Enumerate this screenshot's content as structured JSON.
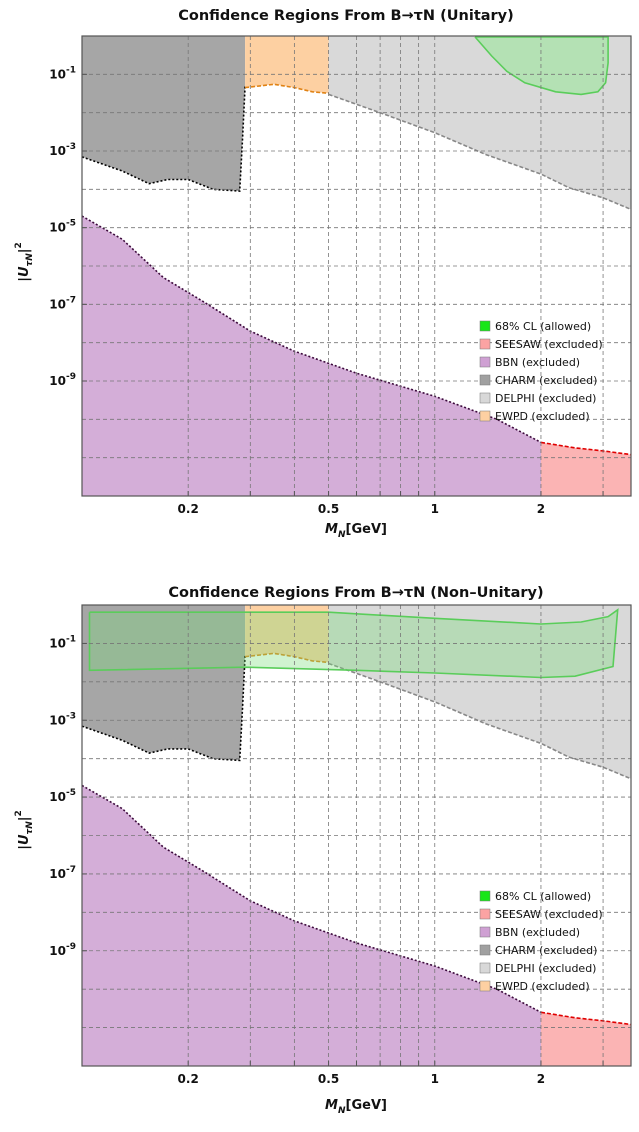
{
  "chart_data": [
    {
      "type": "area",
      "title": "Confidence Regions From B→τN (Unitary)",
      "xlabel_main": "M",
      "xlabel_sub": "N",
      "xlabel_unit": "[GeV]",
      "ylabel_main": "|U",
      "ylabel_sub": "τN",
      "ylabel_tail": "|",
      "ylabel_sup": "2",
      "x_scale": "log",
      "y_scale": "log",
      "xlim": [
        0.1,
        3.6
      ],
      "ylim": [
        1e-12,
        1
      ],
      "grid": true,
      "legend_position": "lower-right",
      "x_tick_labels": [
        {
          "value": 0.2,
          "label": "0.2"
        },
        {
          "value": 0.5,
          "label": "0.5"
        },
        {
          "value": 1,
          "label": "1"
        },
        {
          "value": 2,
          "label": "2"
        }
      ],
      "y_tick_labels": [
        {
          "value": 0.1,
          "label": "10",
          "exp": "-1"
        },
        {
          "value": 0.001,
          "label": "10",
          "exp": "-3"
        },
        {
          "value": 1e-05,
          "label": "10",
          "exp": "-5"
        },
        {
          "value": 1e-07,
          "label": "10",
          "exp": "-7"
        },
        {
          "value": 1e-09,
          "label": "10",
          "exp": "-9"
        }
      ],
      "series": [
        {
          "name": "DELPHI (excluded)",
          "fill": "#d9d9d9",
          "edge": "#888888",
          "edge_style": "dashed",
          "boundary": [
            [
              0.5,
              0.03
            ],
            [
              0.7,
              0.01
            ],
            [
              1.0,
              0.003
            ],
            [
              1.4,
              0.0008
            ],
            [
              2.0,
              0.00025
            ],
            [
              2.4,
              0.00011
            ],
            [
              3.0,
              6e-05
            ],
            [
              3.6,
              3e-05
            ]
          ]
        },
        {
          "name": "CHARM (excluded)",
          "fill": "#a6a6a6",
          "edge": "#000000",
          "edge_style": "dotted",
          "boundary": [
            [
              0.1,
              0.0007
            ],
            [
              0.13,
              0.0003
            ],
            [
              0.155,
              0.00014
            ],
            [
              0.175,
              0.00018
            ],
            [
              0.2,
              0.00018
            ],
            [
              0.235,
              0.0001
            ],
            [
              0.28,
              9e-05
            ],
            [
              0.285,
              0.002
            ],
            [
              0.29,
              0.05
            ]
          ]
        },
        {
          "name": "EWPD (excluded)",
          "fill": "#fdd0a2",
          "edge": "#e08214",
          "edge_style": "dashed",
          "boundary": [
            [
              0.29,
              0.045
            ],
            [
              0.35,
              0.055
            ],
            [
              0.4,
              0.045
            ],
            [
              0.45,
              0.035
            ],
            [
              0.5,
              0.032
            ]
          ]
        },
        {
          "name": "BBN (excluded)",
          "fill": "#d4aed8",
          "edge": "#3c0a3c",
          "edge_style": "dotted",
          "boundary": [
            [
              0.1,
              2e-05
            ],
            [
              0.13,
              5e-06
            ],
            [
              0.17,
              5e-07
            ],
            [
              0.22,
              1.2e-07
            ],
            [
              0.3,
              2e-08
            ],
            [
              0.4,
              6e-09
            ],
            [
              0.6,
              1.6e-09
            ],
            [
              1.0,
              4e-10
            ],
            [
              1.5,
              1e-10
            ],
            [
              2.0,
              2.5e-11
            ]
          ]
        },
        {
          "name": "SEESAW (excluded)",
          "fill": "#fbb4b4",
          "edge": "#e00000",
          "edge_style": "dashed",
          "boundary": [
            [
              2.0,
              2.5e-11
            ],
            [
              2.5,
              1.8e-11
            ],
            [
              3.0,
              1.5e-11
            ],
            [
              3.6,
              1.2e-11
            ]
          ]
        },
        {
          "name": "68% CL (allowed)",
          "fill": "#b4e1b4",
          "edge": "#5acd5a",
          "edge_style": "solid",
          "boundary": [
            [
              1.3,
              0.95
            ],
            [
              1.45,
              0.3
            ],
            [
              1.6,
              0.12
            ],
            [
              1.8,
              0.06
            ],
            [
              2.2,
              0.035
            ],
            [
              2.6,
              0.03
            ],
            [
              2.9,
              0.035
            ],
            [
              3.05,
              0.06
            ],
            [
              3.1,
              0.2
            ],
            [
              3.1,
              0.95
            ]
          ]
        }
      ],
      "legend": [
        {
          "label": "68% CL (allowed)",
          "color": "#19e619"
        },
        {
          "label": "SEESAW (excluded)",
          "color": "#fba3a3"
        },
        {
          "label": "BBN (excluded)",
          "color": "#cfa0d3"
        },
        {
          "label": "CHARM (excluded)",
          "color": "#a0a0a0"
        },
        {
          "label": "DELPHI (excluded)",
          "color": "#d8d8d8"
        },
        {
          "label": "EWPD (excluded)",
          "color": "#fdd0a2"
        }
      ]
    },
    {
      "type": "area",
      "title": "Confidence Regions From B→τN (Non–Unitary)",
      "xlabel_main": "M",
      "xlabel_sub": "N",
      "xlabel_unit": "[GeV]",
      "ylabel_main": "|U",
      "ylabel_sub": "τN",
      "ylabel_tail": "|",
      "ylabel_sup": "2",
      "x_scale": "log",
      "y_scale": "log",
      "xlim": [
        0.1,
        3.6
      ],
      "ylim": [
        1e-12,
        1
      ],
      "grid": true,
      "legend_position": "lower-right",
      "x_tick_labels": [
        {
          "value": 0.2,
          "label": "0.2"
        },
        {
          "value": 0.5,
          "label": "0.5"
        },
        {
          "value": 1,
          "label": "1"
        },
        {
          "value": 2,
          "label": "2"
        }
      ],
      "y_tick_labels": [
        {
          "value": 0.1,
          "label": "10",
          "exp": "-1"
        },
        {
          "value": 0.001,
          "label": "10",
          "exp": "-3"
        },
        {
          "value": 1e-05,
          "label": "10",
          "exp": "-5"
        },
        {
          "value": 1e-07,
          "label": "10",
          "exp": "-7"
        },
        {
          "value": 1e-09,
          "label": "10",
          "exp": "-9"
        }
      ],
      "series": [
        {
          "name": "DELPHI (excluded)",
          "fill": "#d9d9d9",
          "edge": "#888888",
          "edge_style": "dashed",
          "boundary": [
            [
              0.5,
              0.03
            ],
            [
              0.7,
              0.01
            ],
            [
              1.0,
              0.003
            ],
            [
              1.4,
              0.0008
            ],
            [
              2.0,
              0.00025
            ],
            [
              2.4,
              0.00011
            ],
            [
              3.0,
              6e-05
            ],
            [
              3.6,
              3e-05
            ]
          ]
        },
        {
          "name": "CHARM (excluded)",
          "fill": "#a6a6a6",
          "edge": "#000000",
          "edge_style": "dotted",
          "boundary": [
            [
              0.1,
              0.0007
            ],
            [
              0.13,
              0.0003
            ],
            [
              0.155,
              0.00014
            ],
            [
              0.175,
              0.00018
            ],
            [
              0.2,
              0.00018
            ],
            [
              0.235,
              0.0001
            ],
            [
              0.28,
              9e-05
            ],
            [
              0.285,
              0.002
            ],
            [
              0.29,
              0.05
            ]
          ]
        },
        {
          "name": "EWPD (excluded)",
          "fill": "#fdd0a2",
          "edge": "#e08214",
          "edge_style": "dashed",
          "boundary": [
            [
              0.29,
              0.045
            ],
            [
              0.35,
              0.055
            ],
            [
              0.4,
              0.045
            ],
            [
              0.45,
              0.035
            ],
            [
              0.5,
              0.032
            ]
          ]
        },
        {
          "name": "BBN (excluded)",
          "fill": "#d4aed8",
          "edge": "#3c0a3c",
          "edge_style": "dotted",
          "boundary": [
            [
              0.1,
              2e-05
            ],
            [
              0.13,
              5e-06
            ],
            [
              0.17,
              5e-07
            ],
            [
              0.22,
              1.2e-07
            ],
            [
              0.3,
              2e-08
            ],
            [
              0.4,
              6e-09
            ],
            [
              0.6,
              1.6e-09
            ],
            [
              1.0,
              4e-10
            ],
            [
              1.5,
              1e-10
            ],
            [
              2.0,
              2.5e-11
            ]
          ]
        },
        {
          "name": "SEESAW (excluded)",
          "fill": "#fbb4b4",
          "edge": "#e00000",
          "edge_style": "dashed",
          "boundary": [
            [
              2.0,
              2.5e-11
            ],
            [
              2.5,
              1.8e-11
            ],
            [
              3.0,
              1.5e-11
            ],
            [
              3.6,
              1.2e-11
            ]
          ]
        },
        {
          "name": "68% CL (allowed)",
          "fill": "rgba(120,220,120,0.35)",
          "edge": "#5acd5a",
          "edge_style": "solid",
          "boundary": [
            [
              0.105,
              0.65
            ],
            [
              0.5,
              0.65
            ],
            [
              1.0,
              0.45
            ],
            [
              2.0,
              0.32
            ],
            [
              2.6,
              0.36
            ],
            [
              3.1,
              0.5
            ],
            [
              3.3,
              0.75
            ],
            [
              3.2,
              0.025
            ],
            [
              2.5,
              0.014
            ],
            [
              2.0,
              0.013
            ],
            [
              1.0,
              0.017
            ],
            [
              0.6,
              0.02
            ],
            [
              0.29,
              0.024
            ],
            [
              0.105,
              0.02
            ]
          ]
        }
      ],
      "legend": [
        {
          "label": "68% CL (allowed)",
          "color": "#19e619"
        },
        {
          "label": "SEESAW (excluded)",
          "color": "#fba3a3"
        },
        {
          "label": "BBN (excluded)",
          "color": "#cfa0d3"
        },
        {
          "label": "CHARM (excluded)",
          "color": "#a0a0a0"
        },
        {
          "label": "DELPHI (excluded)",
          "color": "#d8d8d8"
        },
        {
          "label": "EWPD (excluded)",
          "color": "#fdd0a2"
        }
      ]
    }
  ]
}
